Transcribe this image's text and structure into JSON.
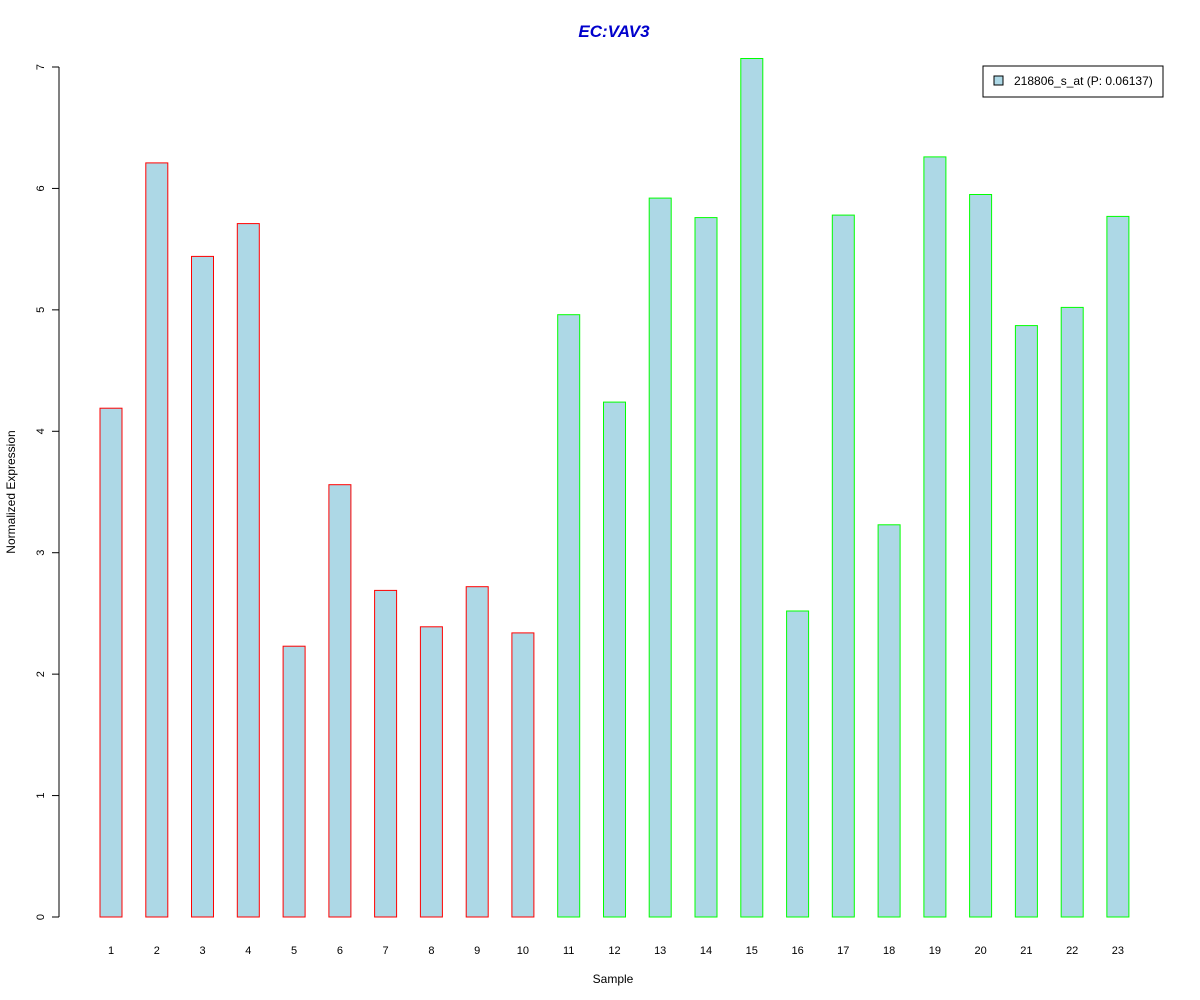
{
  "colors": {
    "title": "#0000CC",
    "bar_fill": "#ADD8E6",
    "group1_border": "#FF0000",
    "group2_border": "#00FF00",
    "axis": "#000000"
  },
  "chart_data": {
    "type": "bar",
    "title": "EC:VAV3",
    "xlabel": "Sample",
    "ylabel": "Normalized Expression",
    "ylim": [
      0,
      7
    ],
    "yticks": [
      0,
      1,
      2,
      3,
      4,
      5,
      6,
      7
    ],
    "grid": false,
    "legend_position": "top-right",
    "categories": [
      "1",
      "2",
      "3",
      "4",
      "5",
      "6",
      "7",
      "8",
      "9",
      "10",
      "11",
      "12",
      "13",
      "14",
      "15",
      "16",
      "17",
      "18",
      "19",
      "20",
      "21",
      "22",
      "23"
    ],
    "series": [
      {
        "name": "218806_s_at (P: 0.06137)",
        "values": [
          4.19,
          6.21,
          5.44,
          5.71,
          2.23,
          3.56,
          2.69,
          2.39,
          2.72,
          2.34,
          4.96,
          4.24,
          5.92,
          5.76,
          7.07,
          2.52,
          5.78,
          3.23,
          6.26,
          5.95,
          4.87,
          5.02,
          5.77
        ],
        "border_groups": [
          "red",
          "red",
          "red",
          "red",
          "red",
          "red",
          "red",
          "red",
          "red",
          "red",
          "green",
          "green",
          "green",
          "green",
          "green",
          "green",
          "green",
          "green",
          "green",
          "green",
          "green",
          "green",
          "green"
        ]
      }
    ]
  }
}
